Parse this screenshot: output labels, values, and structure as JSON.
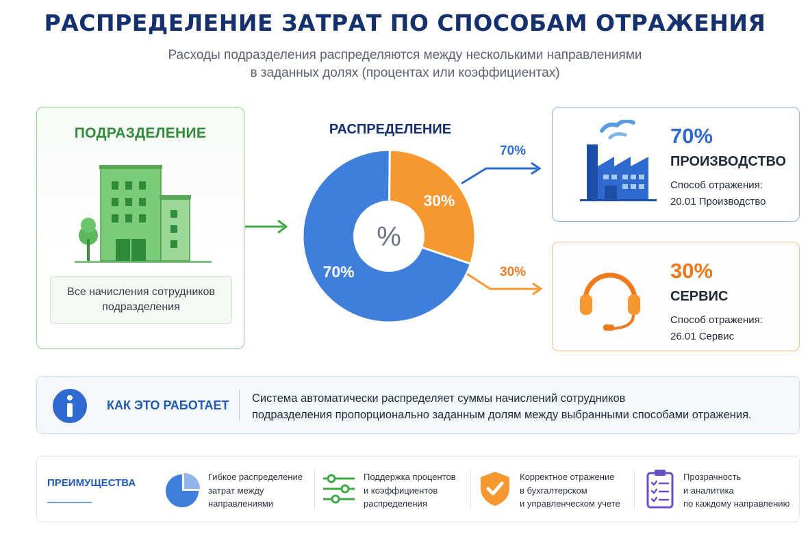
{
  "header": {
    "title": "РАСПРЕДЕЛЕНИЕ ЗАТРАТ ПО СПОСОБАМ ОТРАЖЕНИЯ",
    "subtitle_line1": "Расходы подразделения распределяются между несколькими направлениями",
    "subtitle_line2": "в заданных долях (процентах или коэффициентах)"
  },
  "department": {
    "title": "ПОДРАЗДЕЛЕНИЕ",
    "note_line1": "Все начисления сотрудников",
    "note_line2": "подразделения"
  },
  "distribution": {
    "title": "РАСПРЕДЕЛЕНИЕ",
    "center_symbol": "%"
  },
  "chart_data": {
    "type": "pie",
    "categories": [
      "70%",
      "30%"
    ],
    "values": [
      70,
      30
    ],
    "colors": [
      "#3f7fdc",
      "#f6972f"
    ]
  },
  "arrows": {
    "production_label": "70%",
    "service_label": "30%"
  },
  "production": {
    "percent": "70%",
    "name": "ПРОИЗВОДСТВО",
    "desc_line1": "Способ отражения:",
    "desc_line2": "20.01 Производство",
    "icon": "factory-icon",
    "color": "#2f6ad0"
  },
  "service": {
    "percent": "30%",
    "name": "СЕРВИС",
    "desc_line1": "Способ отражения:",
    "desc_line2": "26.01 Сервис",
    "icon": "headset-icon",
    "color": "#ee7a1d"
  },
  "how_it_works": {
    "title": "КАК ЭТО РАБОТАЕТ",
    "text_line1": "Система автоматически распределяет суммы начислений сотрудников",
    "text_line2": "подразделения пропорционально заданным долям между выбранными способами отражения."
  },
  "advantages": {
    "title": "ПРЕИМУЩЕСТВА",
    "items": [
      {
        "icon": "pie-chart-icon",
        "line1": "Гибкое распределение",
        "line2": "затрат между",
        "line3": "направлениями"
      },
      {
        "icon": "sliders-icon",
        "line1": "Поддержка процентов",
        "line2": "и коэффициентов",
        "line3": "распределения"
      },
      {
        "icon": "shield-check-icon",
        "line1": "Корректное отражение",
        "line2": "в бухгалтерском",
        "line3": "и управленческом учете"
      },
      {
        "icon": "checklist-icon",
        "line1": "Прозрачность",
        "line2": "и аналитика",
        "line3": "по каждому направлению"
      }
    ]
  }
}
